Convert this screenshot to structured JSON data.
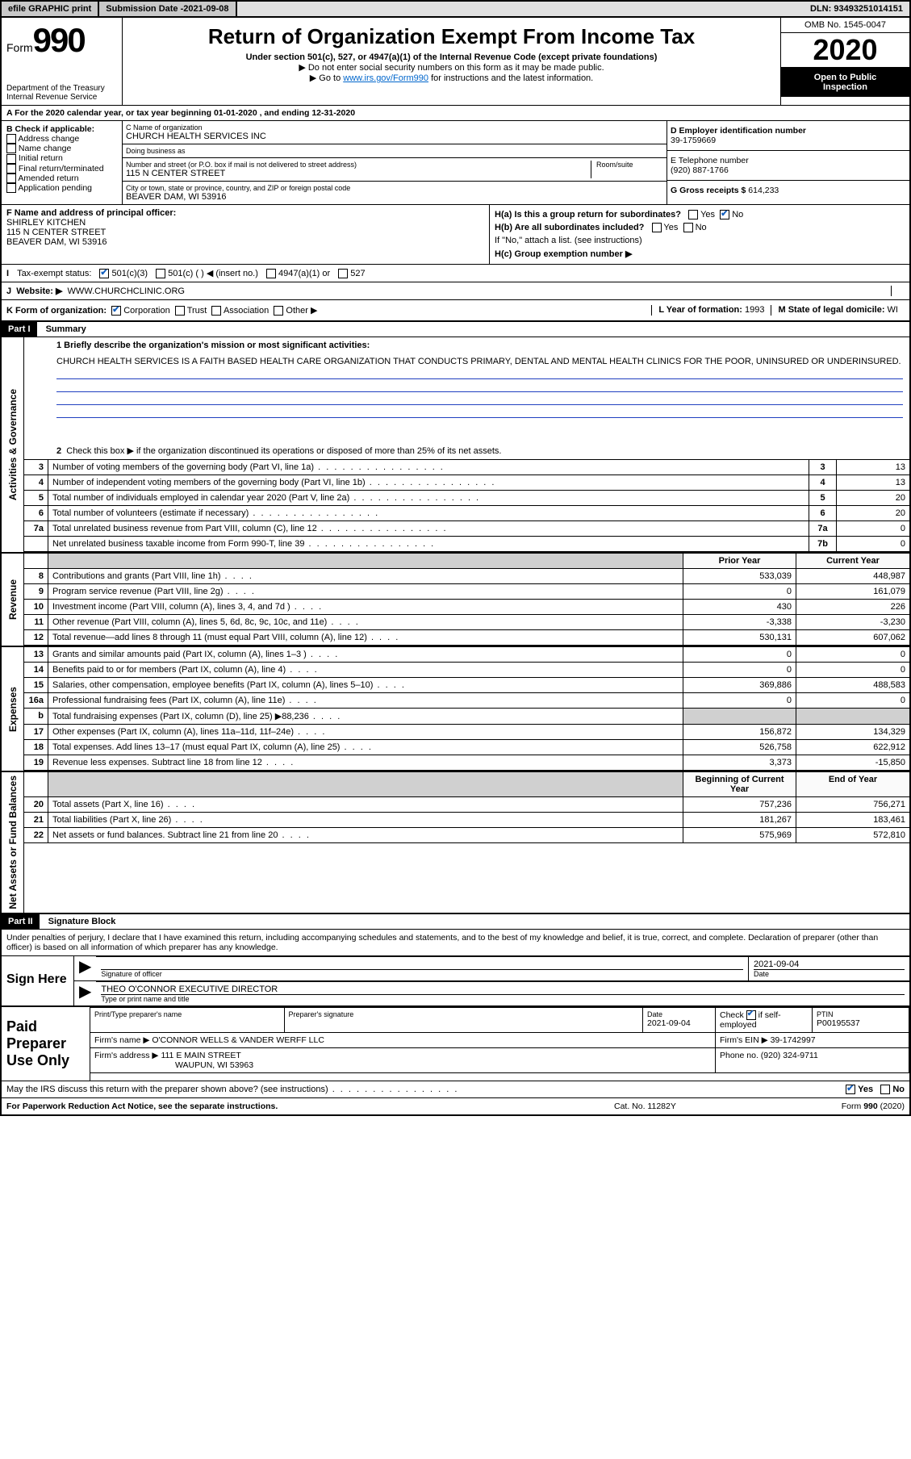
{
  "topbar": {
    "efile": "efile GRAPHIC print",
    "submission_label": "Submission Date - ",
    "submission_date": "2021-09-08",
    "dln_label": "DLN: ",
    "dln": "93493251014151"
  },
  "header": {
    "form_word": "Form",
    "form_number": "990",
    "dept1": "Department of the Treasury",
    "dept2": "Internal Revenue Service",
    "title": "Return of Organization Exempt From Income Tax",
    "subtitle": "Under section 501(c), 527, or 4947(a)(1) of the Internal Revenue Code (except private foundations)",
    "note1": "Do not enter social security numbers on this form as it may be made public.",
    "note2_a": "Go to ",
    "note2_link": "www.irs.gov/Form990",
    "note2_b": " for instructions and the latest information.",
    "omb": "OMB No. 1545-0047",
    "year": "2020",
    "open1": "Open to Public",
    "open2": "Inspection"
  },
  "rowA": "A For the 2020 calendar year, or tax year beginning 01-01-2020    , and ending 12-31-2020",
  "boxB": {
    "label": "B Check if applicable:",
    "opts": [
      "Address change",
      "Name change",
      "Initial return",
      "Final return/terminated",
      "Amended return",
      "Application pending"
    ]
  },
  "boxC": {
    "name_lbl": "C Name of organization",
    "name": "CHURCH HEALTH SERVICES INC",
    "dba_lbl": "Doing business as",
    "dba": "",
    "addr_lbl": "Number and street (or P.O. box if mail is not delivered to street address)",
    "room_lbl": "Room/suite",
    "addr": "115 N CENTER STREET",
    "city_lbl": "City or town, state or province, country, and ZIP or foreign postal code",
    "city": "BEAVER DAM, WI  53916"
  },
  "boxD": {
    "lbl": "D Employer identification number",
    "val": "39-1759669"
  },
  "boxE": {
    "lbl": "E Telephone number",
    "val": "(920) 887-1766"
  },
  "boxG": {
    "lbl": "G Gross receipts $ ",
    "val": "614,233"
  },
  "boxF": {
    "lbl": "F  Name and address of principal officer:",
    "name": "SHIRLEY KITCHEN",
    "addr1": "115 N CENTER STREET",
    "addr2": "BEAVER DAM, WI  53916"
  },
  "boxH": {
    "a": "H(a)  Is this a group return for subordinates?",
    "b": "H(b)  Are all subordinates included?",
    "b_note": "If \"No,\" attach a list. (see instructions)",
    "c": "H(c)  Group exemption number ▶",
    "yes": "Yes",
    "no": "No"
  },
  "rowI": {
    "lbl": "Tax-exempt status:",
    "o1": "501(c)(3)",
    "o2": "501(c) (  ) ◀ (insert no.)",
    "o3": "4947(a)(1) or",
    "o4": "527"
  },
  "rowJ": {
    "lbl": "J",
    "text": "Website: ▶",
    "val": "WWW.CHURCHCLINIC.ORG"
  },
  "rowK": {
    "lbl": "K Form of organization:",
    "o1": "Corporation",
    "o2": "Trust",
    "o3": "Association",
    "o4": "Other ▶",
    "L_lbl": "L Year of formation: ",
    "L_val": "1993",
    "M_lbl": "M State of legal domicile: ",
    "M_val": "WI"
  },
  "part1": {
    "hdr": "Part I",
    "title": "Summary",
    "q1_lbl": "1  Briefly describe the organization's mission or most significant activities:",
    "q1_text": "CHURCH HEALTH SERVICES IS A FAITH BASED HEALTH CARE ORGANIZATION THAT CONDUCTS PRIMARY, DENTAL AND MENTAL HEALTH CLINICS FOR THE POOR, UNINSURED OR UNDERINSURED.",
    "q2": "Check this box ▶        if the organization discontinued its operations or disposed of more than 25% of its net assets.",
    "side_ag": "Activities & Governance",
    "side_rev": "Revenue",
    "side_exp": "Expenses",
    "side_net": "Net Assets or Fund Balances",
    "lines_ag": [
      {
        "n": "3",
        "t": "Number of voting members of the governing body (Part VI, line 1a)",
        "box": "3",
        "v": "13"
      },
      {
        "n": "4",
        "t": "Number of independent voting members of the governing body (Part VI, line 1b)",
        "box": "4",
        "v": "13"
      },
      {
        "n": "5",
        "t": "Total number of individuals employed in calendar year 2020 (Part V, line 2a)",
        "box": "5",
        "v": "20"
      },
      {
        "n": "6",
        "t": "Total number of volunteers (estimate if necessary)",
        "box": "6",
        "v": "20"
      },
      {
        "n": "7a",
        "t": "Total unrelated business revenue from Part VIII, column (C), line 12",
        "box": "7a",
        "v": "0"
      },
      {
        "n": "",
        "t": "Net unrelated business taxable income from Form 990-T, line 39",
        "box": "7b",
        "v": "0"
      }
    ],
    "cols": {
      "py": "Prior Year",
      "cy": "Current Year"
    },
    "lines_rev": [
      {
        "n": "8",
        "t": "Contributions and grants (Part VIII, line 1h)",
        "py": "533,039",
        "cy": "448,987"
      },
      {
        "n": "9",
        "t": "Program service revenue (Part VIII, line 2g)",
        "py": "0",
        "cy": "161,079"
      },
      {
        "n": "10",
        "t": "Investment income (Part VIII, column (A), lines 3, 4, and 7d )",
        "py": "430",
        "cy": "226"
      },
      {
        "n": "11",
        "t": "Other revenue (Part VIII, column (A), lines 5, 6d, 8c, 9c, 10c, and 11e)",
        "py": "-3,338",
        "cy": "-3,230"
      },
      {
        "n": "12",
        "t": "Total revenue—add lines 8 through 11 (must equal Part VIII, column (A), line 12)",
        "py": "530,131",
        "cy": "607,062"
      }
    ],
    "lines_exp": [
      {
        "n": "13",
        "t": "Grants and similar amounts paid (Part IX, column (A), lines 1–3 )",
        "py": "0",
        "cy": "0"
      },
      {
        "n": "14",
        "t": "Benefits paid to or for members (Part IX, column (A), line 4)",
        "py": "0",
        "cy": "0"
      },
      {
        "n": "15",
        "t": "Salaries, other compensation, employee benefits (Part IX, column (A), lines 5–10)",
        "py": "369,886",
        "cy": "488,583"
      },
      {
        "n": "16a",
        "t": "Professional fundraising fees (Part IX, column (A), line 11e)",
        "py": "0",
        "cy": "0"
      },
      {
        "n": "b",
        "t": "Total fundraising expenses (Part IX, column (D), line 25) ▶88,236",
        "py": "",
        "cy": "",
        "shade": true
      },
      {
        "n": "17",
        "t": "Other expenses (Part IX, column (A), lines 11a–11d, 11f–24e)",
        "py": "156,872",
        "cy": "134,329"
      },
      {
        "n": "18",
        "t": "Total expenses. Add lines 13–17 (must equal Part IX, column (A), line 25)",
        "py": "526,758",
        "cy": "622,912"
      },
      {
        "n": "19",
        "t": "Revenue less expenses. Subtract line 18 from line 12",
        "py": "3,373",
        "cy": "-15,850"
      }
    ],
    "cols2": {
      "py": "Beginning of Current Year",
      "cy": "End of Year"
    },
    "lines_net": [
      {
        "n": "20",
        "t": "Total assets (Part X, line 16)",
        "py": "757,236",
        "cy": "756,271"
      },
      {
        "n": "21",
        "t": "Total liabilities (Part X, line 26)",
        "py": "181,267",
        "cy": "183,461"
      },
      {
        "n": "22",
        "t": "Net assets or fund balances. Subtract line 21 from line 20",
        "py": "575,969",
        "cy": "572,810"
      }
    ]
  },
  "part2": {
    "hdr": "Part II",
    "title": "Signature Block",
    "intro": "Under penalties of perjury, I declare that I have examined this return, including accompanying schedules and statements, and to the best of my knowledge and belief, it is true, correct, and complete. Declaration of preparer (other than officer) is based on all information of which preparer has any knowledge."
  },
  "sign": {
    "label": "Sign Here",
    "sig_lbl": "Signature of officer",
    "date_lbl": "Date",
    "date": "2021-09-04",
    "name": "THEO O'CONNOR  EXECUTIVE DIRECTOR",
    "name_lbl": "Type or print name and title"
  },
  "prep": {
    "label": "Paid Preparer Use Only",
    "h1": "Print/Type preparer's name",
    "h2": "Preparer's signature",
    "h3": "Date",
    "h3v": "2021-09-04",
    "h4a": "Check",
    "h4b": "if self-employed",
    "h5": "PTIN",
    "h5v": "P00195537",
    "firm_lbl": "Firm's name    ▶ ",
    "firm": "O'CONNOR WELLS & VANDER WERFF LLC",
    "ein_lbl": "Firm's EIN ▶ ",
    "ein": "39-1742997",
    "addr_lbl": "Firm's address ▶ ",
    "addr1": "111 E MAIN STREET",
    "addr2": "WAUPUN, WI  53963",
    "phone_lbl": "Phone no. ",
    "phone": "(920) 324-9711"
  },
  "discuss": {
    "q": "May the IRS discuss this return with the preparer shown above? (see instructions)",
    "yes": "Yes",
    "no": "No"
  },
  "footer": {
    "l": "For Paperwork Reduction Act Notice, see the separate instructions.",
    "m": "Cat. No. 11282Y",
    "r": "Form 990 (2020)"
  },
  "colors": {
    "link": "#0066cc",
    "rule_blue": "#2040c0",
    "check_blue": "#1560bd"
  }
}
